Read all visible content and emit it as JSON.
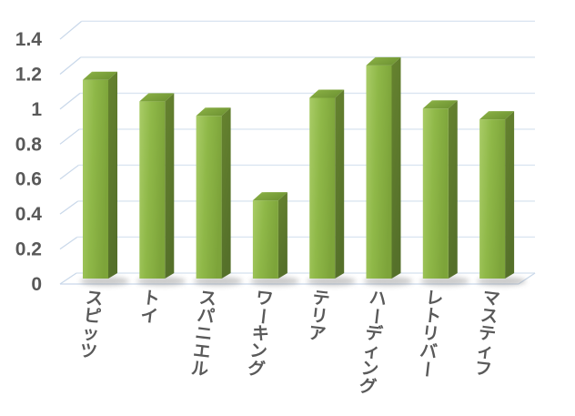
{
  "chart_data": {
    "type": "bar",
    "style": "3d-column",
    "title": "",
    "xlabel": "",
    "ylabel": "",
    "categories": [
      "スピッツ",
      "トイ",
      "スパニエル",
      "ワーキング",
      "テリア",
      "ハーディング",
      "レトリバー",
      "マスティフ"
    ],
    "values": [
      1.12,
      1.0,
      0.92,
      0.45,
      1.02,
      1.2,
      0.96,
      0.9
    ],
    "ylim": [
      0,
      1.4
    ],
    "ytick_step": 0.2,
    "ytick_labels": [
      "0",
      "0.2",
      "0.4",
      "0.6",
      "0.8",
      "1",
      "1.2",
      "1.4"
    ],
    "legend": "none",
    "grid": "on",
    "colors": {
      "bar_front_light": "#a9cc67",
      "bar_front": "#8fb848",
      "bar_front_dark": "#7da43a",
      "bar_top_highlight": "#bcd883",
      "bar_top": "#84aa41",
      "bar_top_dark": "#6f9433",
      "bar_side_light": "#66832f",
      "bar_side_dark": "#55702a",
      "gridline": "#dbe5f1",
      "grid_diagonal": "#c9d8ea",
      "tick_label": "#595959",
      "category_label": "#595959",
      "shadow": "#8a8a8a",
      "background": "#ffffff"
    }
  }
}
